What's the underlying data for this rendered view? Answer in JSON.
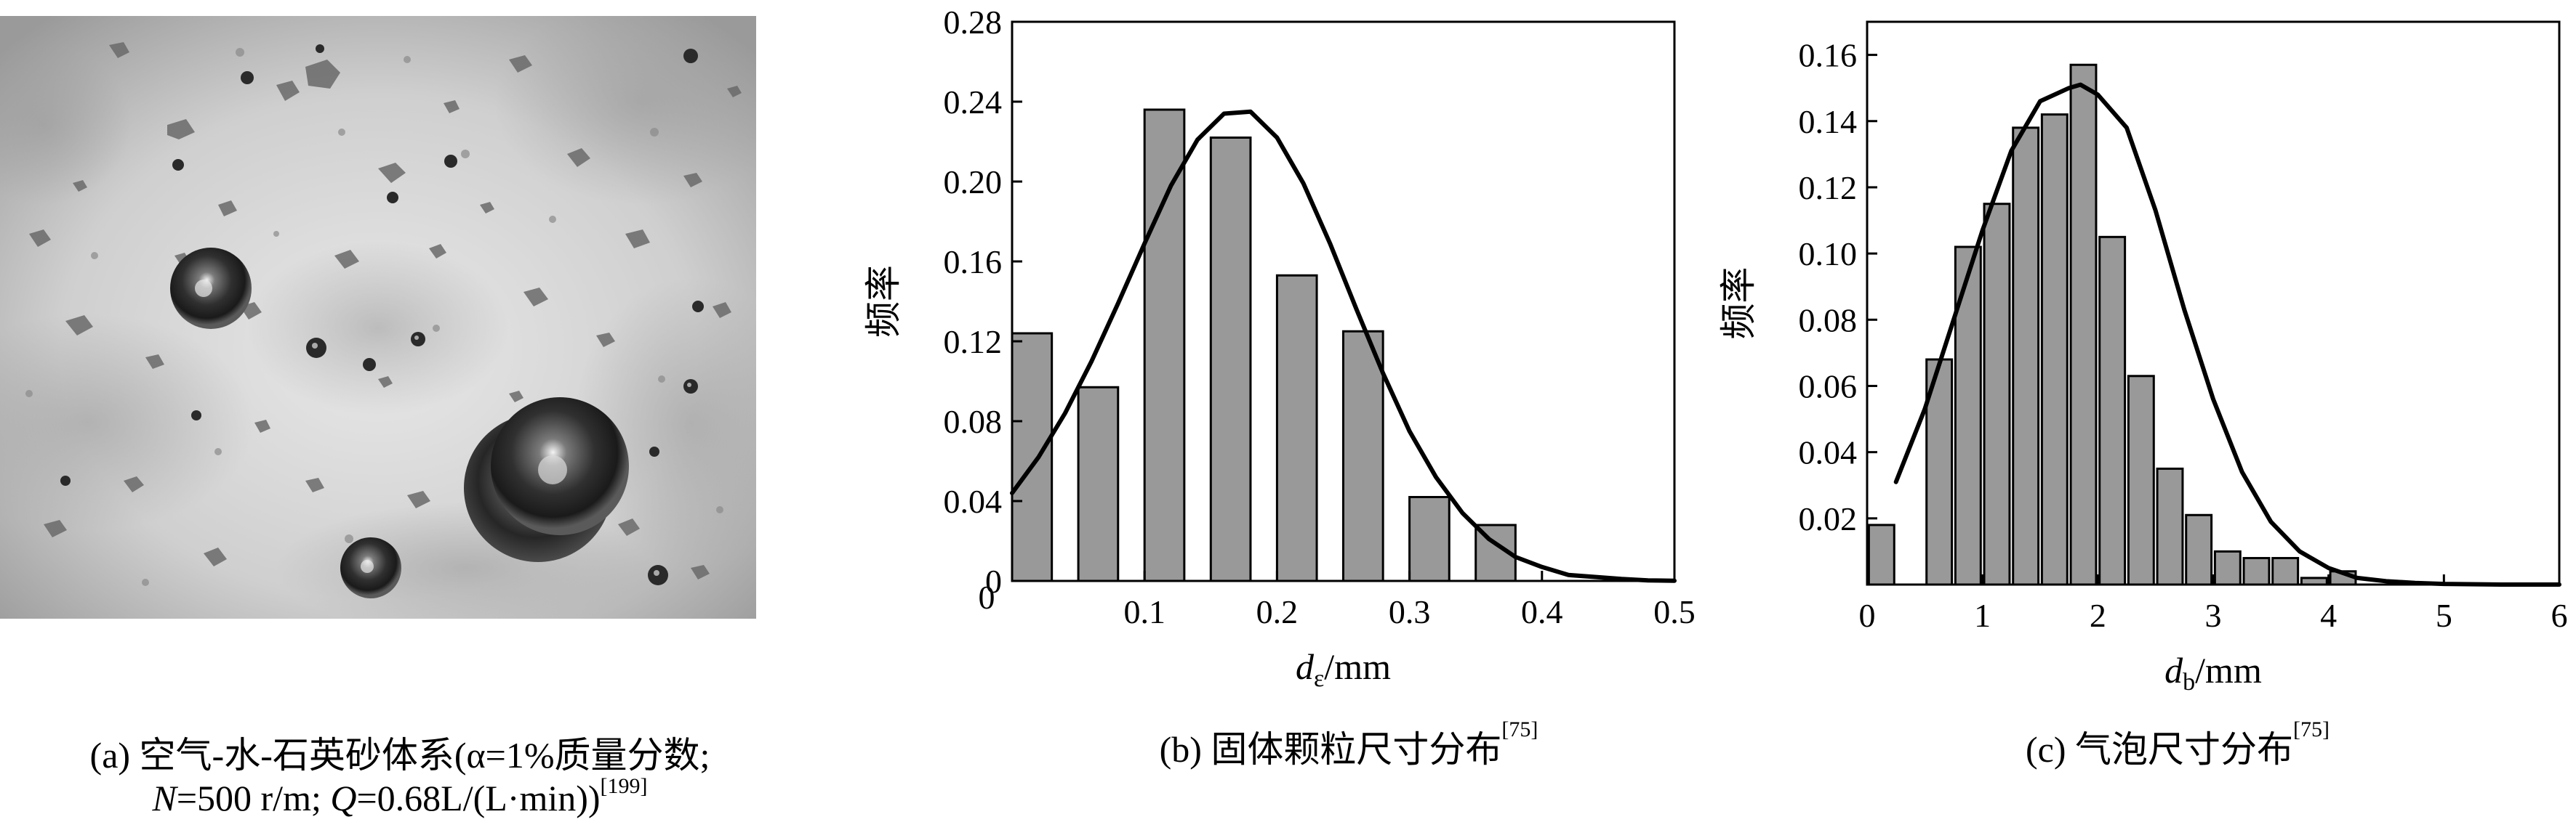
{
  "panel_a": {
    "caption_line1": "(a) 空气-水-石英砂体系(α=1%质量分数;",
    "caption_line2_n": "N",
    "caption_line2_mid": "=500 r/m; ",
    "caption_line2_q": "Q",
    "caption_line2_end": "=0.68L/(L·min))",
    "caption_ref": "[199]"
  },
  "panel_b": {
    "caption": "(b) 固体颗粒尺寸分布",
    "caption_ref": "[75]"
  },
  "panel_c": {
    "caption": "(c) 气泡尺寸分布",
    "caption_ref": "[75]"
  },
  "chart_data": [
    {
      "type": "bar",
      "title": "",
      "ylabel": "频率",
      "xlabel_symbol": "d",
      "xlabel_sub": "ε",
      "xlabel_unit": "/mm",
      "xlim": [
        0,
        0.5
      ],
      "ylim": [
        0,
        0.28
      ],
      "xticks": [
        0.1,
        0.2,
        0.3,
        0.4,
        0.5
      ],
      "xtick_labels": [
        "0.1",
        "0.2",
        "0.3",
        "0.4",
        "0.5"
      ],
      "yticks": [
        0,
        0.04,
        0.08,
        0.12,
        0.16,
        0.2,
        0.24,
        0.28
      ],
      "ytick_labels": [
        "0",
        "0.04",
        "0.08",
        "0.12",
        "0.16",
        "0.20",
        "0.24",
        "0.28"
      ],
      "bar_width": 0.03,
      "x": [
        0.015,
        0.065,
        0.115,
        0.165,
        0.215,
        0.265,
        0.315,
        0.365
      ],
      "values": [
        0.124,
        0.097,
        0.236,
        0.222,
        0.153,
        0.125,
        0.042,
        0.028
      ],
      "fit_curve": {
        "type": "gaussian",
        "x": [
          0.0,
          0.02,
          0.04,
          0.06,
          0.08,
          0.1,
          0.12,
          0.14,
          0.16,
          0.18,
          0.2,
          0.22,
          0.24,
          0.26,
          0.28,
          0.3,
          0.32,
          0.34,
          0.36,
          0.38,
          0.4,
          0.42,
          0.44,
          0.46,
          0.48,
          0.5
        ],
        "y": [
          0.044,
          0.062,
          0.084,
          0.11,
          0.139,
          0.169,
          0.198,
          0.221,
          0.234,
          0.235,
          0.222,
          0.199,
          0.169,
          0.136,
          0.104,
          0.075,
          0.052,
          0.034,
          0.021,
          0.012,
          0.007,
          0.003,
          0.002,
          0.001,
          0.0003,
          0.0001
        ]
      },
      "grid": false,
      "legend": "none",
      "colors": {
        "bar": "#999999",
        "edge": "#000000",
        "curve": "#000000"
      }
    },
    {
      "type": "bar",
      "title": "",
      "ylabel": "频率",
      "xlabel_symbol": "d",
      "xlabel_sub": "b",
      "xlabel_unit": "/mm",
      "xlim": [
        0,
        6
      ],
      "ylim": [
        0,
        0.17
      ],
      "xticks": [
        0,
        1,
        2,
        3,
        4,
        5,
        6
      ],
      "xtick_labels": [
        "0",
        "1",
        "2",
        "3",
        "4",
        "5",
        "6"
      ],
      "yticks": [
        0.02,
        0.04,
        0.06,
        0.08,
        0.1,
        0.12,
        0.14,
        0.16
      ],
      "ytick_labels": [
        "0.02",
        "0.04",
        "0.06",
        "0.08",
        "0.10",
        "0.12",
        "0.14",
        "0.16"
      ],
      "bar_width": 0.22,
      "x": [
        0.125,
        0.375,
        0.625,
        0.875,
        1.125,
        1.375,
        1.625,
        1.875,
        2.125,
        2.375,
        2.625,
        2.875,
        3.125,
        3.375,
        3.625,
        3.875,
        4.125,
        4.375,
        4.625,
        4.875,
        5.125,
        5.375
      ],
      "values": [
        0.018,
        0.0,
        0.068,
        0.102,
        0.115,
        0.138,
        0.142,
        0.157,
        0.105,
        0.063,
        0.035,
        0.021,
        0.01,
        0.008,
        0.008,
        0.002,
        0.004,
        0.0,
        0.0,
        0.0,
        0.0,
        0.0
      ],
      "fit_curve": {
        "type": "gaussian",
        "x": [
          0.25,
          0.5,
          0.75,
          1.0,
          1.25,
          1.5,
          1.75,
          1.85,
          2.0,
          2.25,
          2.5,
          2.75,
          3.0,
          3.25,
          3.5,
          3.75,
          4.0,
          4.25,
          4.5,
          4.75,
          5.0,
          5.5,
          6.0
        ],
        "y": [
          0.031,
          0.053,
          0.08,
          0.107,
          0.131,
          0.146,
          0.15,
          0.151,
          0.148,
          0.138,
          0.113,
          0.083,
          0.056,
          0.034,
          0.019,
          0.01,
          0.005,
          0.002,
          0.001,
          0.0005,
          0.0002,
          0.0,
          0.0
        ]
      },
      "grid": false,
      "legend": "none",
      "colors": {
        "bar": "#999999",
        "edge": "#000000",
        "curve": "#000000"
      }
    }
  ]
}
